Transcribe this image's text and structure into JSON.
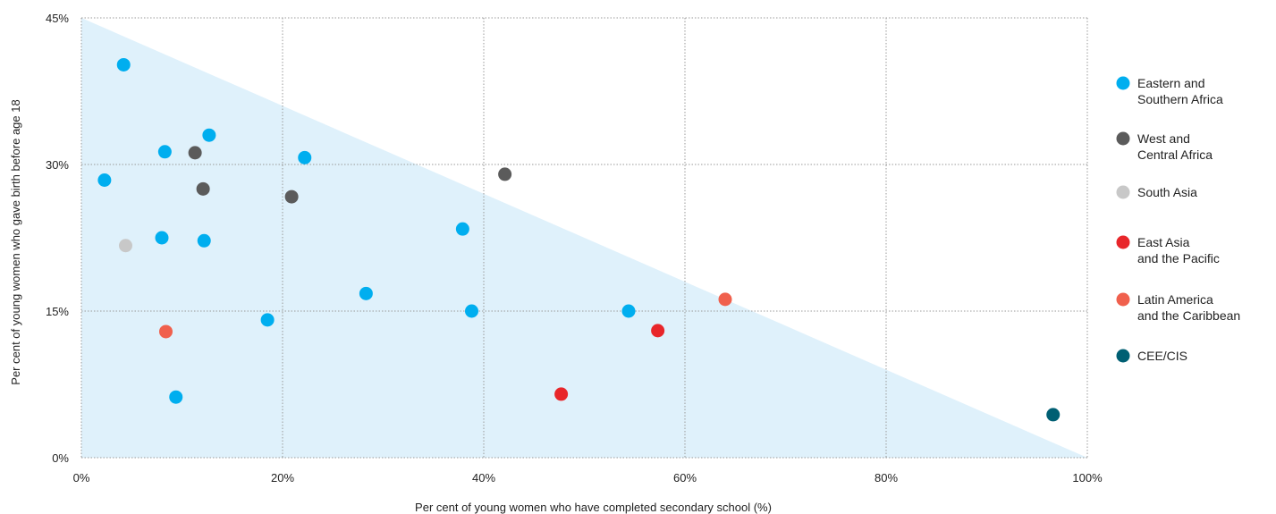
{
  "chart_data": {
    "type": "scatter",
    "title": "",
    "xlabel": "Per cent of young women who have completed secondary school (%)",
    "ylabel": "Per cent of young women who gave birth before age 18",
    "xlim": [
      0,
      100
    ],
    "ylim": [
      0,
      45
    ],
    "xticks": [
      "0%",
      "20%",
      "40%",
      "60%",
      "80%",
      "100%"
    ],
    "yticks": [
      "0%",
      "15%",
      "30%",
      "45%"
    ],
    "grid": true,
    "legend_position": "right",
    "shaded_region": {
      "points": [
        [
          0,
          45
        ],
        [
          100,
          0
        ],
        [
          0,
          0
        ]
      ],
      "color": "#dff1fb"
    },
    "series": [
      {
        "name": "Eastern and Southern Africa",
        "color": "#00aeef",
        "points": [
          [
            4.2,
            40.2
          ],
          [
            12.7,
            33.0
          ],
          [
            8.3,
            31.3
          ],
          [
            22.2,
            30.7
          ],
          [
            2.3,
            28.4
          ],
          [
            37.9,
            23.4
          ],
          [
            8.0,
            22.5
          ],
          [
            12.2,
            22.2
          ],
          [
            28.3,
            16.8
          ],
          [
            18.5,
            14.1
          ],
          [
            38.8,
            15.0
          ],
          [
            54.4,
            15.0
          ],
          [
            9.4,
            6.2
          ]
        ]
      },
      {
        "name": "West and Central Africa",
        "color": "#5b5b5b",
        "points": [
          [
            11.3,
            31.2
          ],
          [
            12.1,
            27.5
          ],
          [
            20.9,
            26.7
          ],
          [
            42.1,
            29.0
          ]
        ]
      },
      {
        "name": "South Asia",
        "color": "#c8c8c8",
        "points": [
          [
            4.4,
            21.7
          ]
        ]
      },
      {
        "name": "East Asia and the Pacific",
        "color": "#e8262a",
        "points": [
          [
            47.7,
            6.5
          ],
          [
            57.3,
            13.0
          ]
        ]
      },
      {
        "name": "Latin America and the Caribbean",
        "color": "#f0604d",
        "points": [
          [
            8.4,
            12.9
          ],
          [
            64.0,
            16.2
          ]
        ]
      },
      {
        "name": "CEE/CIS",
        "color": "#005f73",
        "points": [
          [
            96.6,
            4.4
          ]
        ]
      }
    ],
    "legend": [
      {
        "lines": [
          "Eastern and",
          "Southern Africa"
        ],
        "color": "#00aeef"
      },
      {
        "lines": [
          "West and",
          "Central Africa"
        ],
        "color": "#5b5b5b"
      },
      {
        "lines": [
          "South Asia"
        ],
        "color": "#c8c8c8"
      },
      {
        "lines": [
          "East Asia",
          "and the Pacific"
        ],
        "color": "#e8262a"
      },
      {
        "lines": [
          "Latin America",
          "and the Caribbean"
        ],
        "color": "#f0604d"
      },
      {
        "lines": [
          "CEE/CIS"
        ],
        "color": "#005f73"
      }
    ]
  }
}
